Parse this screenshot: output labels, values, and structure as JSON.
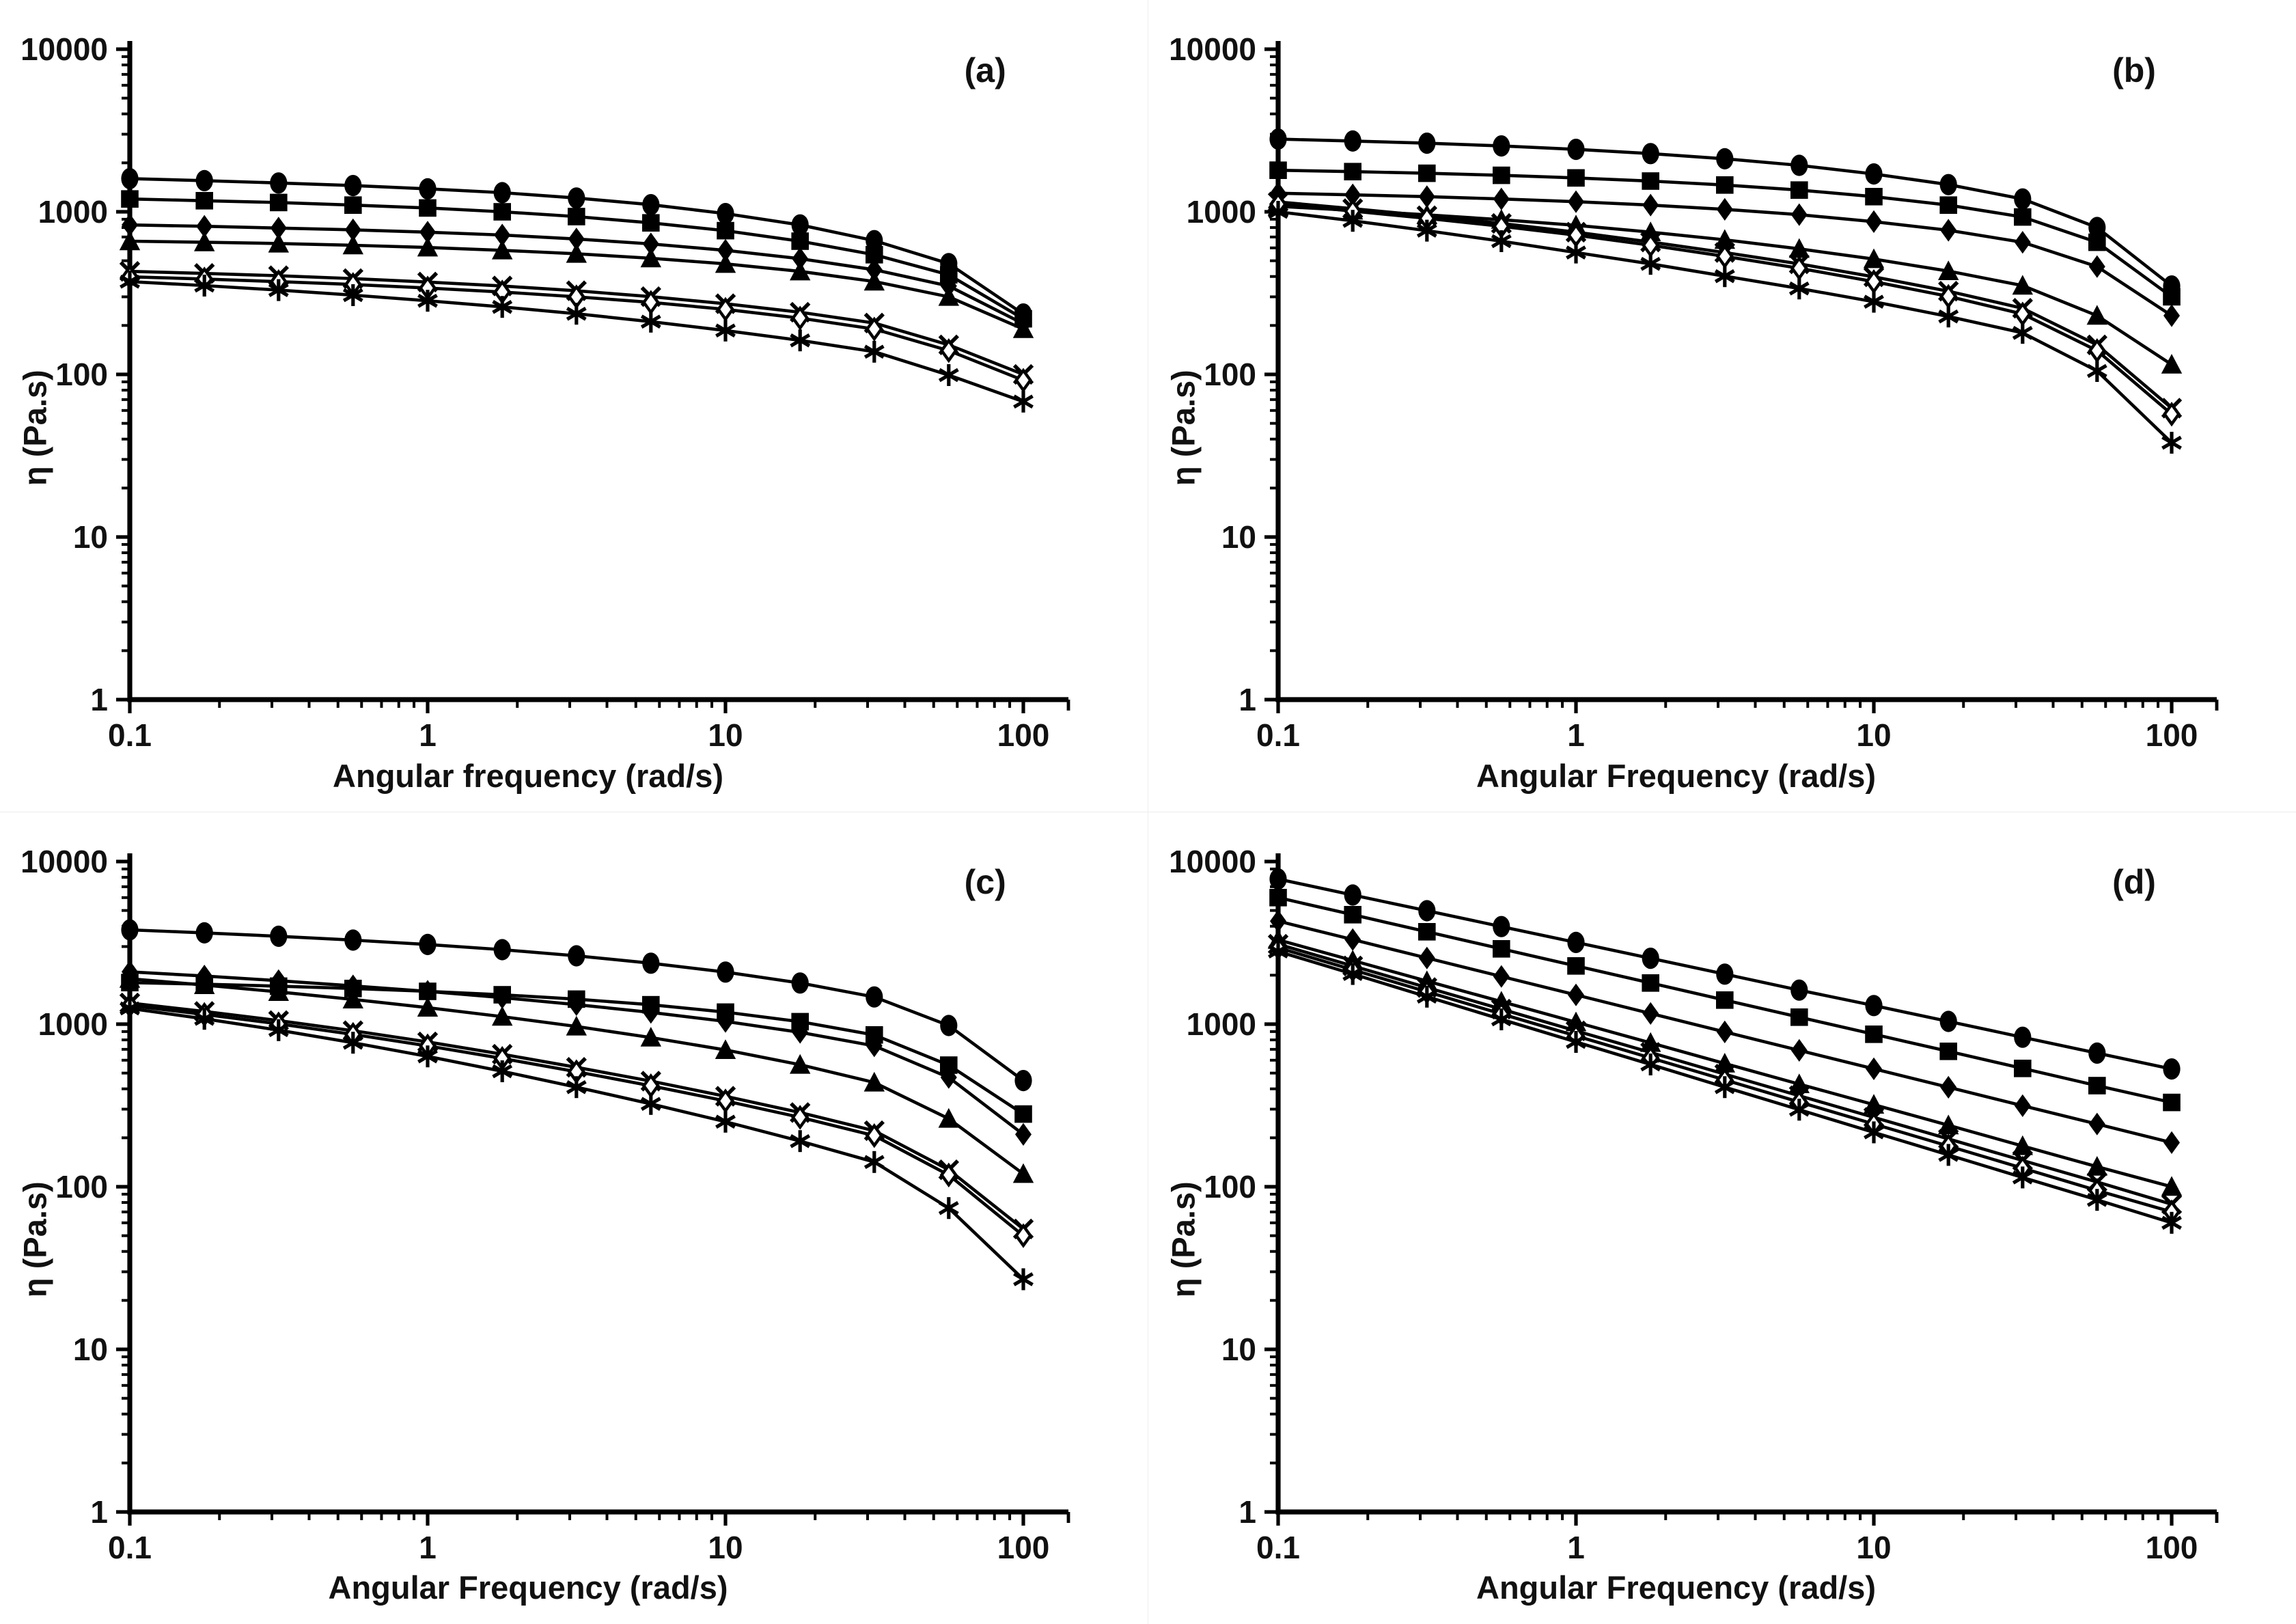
{
  "figure": {
    "background": "#ffffff",
    "axis_color": "#000000",
    "series_color": "#000000",
    "ylabel": "η (Pa.s)"
  },
  "chart_data": [
    {
      "type": "line",
      "tag": "(a)",
      "xlabel": "Angular frequency (rad/s)",
      "ylabel": "η (Pa.s)",
      "x_scale": "log",
      "y_scale": "log",
      "xlim": [
        0.1,
        100
      ],
      "ylim": [
        1,
        10000
      ],
      "x_tick_labels": [
        "0.1",
        "1",
        "10",
        "100"
      ],
      "y_tick_labels": [
        "1",
        "10",
        "100",
        "1000",
        "10000"
      ],
      "x": [
        0.1,
        0.178,
        0.316,
        0.562,
        1,
        1.78,
        3.16,
        5.62,
        10,
        17.8,
        31.6,
        56.2,
        100
      ],
      "series": [
        {
          "marker": "filled-circle",
          "values": [
            1600,
            1555,
            1505,
            1450,
            1385,
            1310,
            1215,
            1105,
            975,
            830,
            665,
            480,
            235
          ]
        },
        {
          "marker": "filled-square",
          "values": [
            1200,
            1170,
            1140,
            1100,
            1055,
            1000,
            935,
            855,
            765,
            660,
            545,
            410,
            220
          ]
        },
        {
          "marker": "filled-diamond",
          "values": [
            830,
            815,
            795,
            775,
            750,
            720,
            680,
            635,
            580,
            515,
            440,
            350,
            205
          ]
        },
        {
          "marker": "filled-triangle",
          "values": [
            660,
            650,
            638,
            622,
            603,
            580,
            552,
            518,
            478,
            430,
            373,
            300,
            190
          ]
        },
        {
          "marker": "x-mark",
          "values": [
            430,
            418,
            404,
            388,
            370,
            350,
            327,
            301,
            272,
            241,
            207,
            152,
            100
          ]
        },
        {
          "marker": "open-diamond",
          "values": [
            398,
            386,
            372,
            357,
            340,
            321,
            300,
            277,
            251,
            222,
            190,
            140,
            92
          ]
        },
        {
          "marker": "asterisk",
          "values": [
            372,
            352,
            330,
            307,
            284,
            260,
            236,
            211,
            186,
            162,
            138,
            99,
            68
          ]
        }
      ]
    },
    {
      "type": "line",
      "tag": "(b)",
      "xlabel": "Angular Frequency (rad/s)",
      "ylabel": "η (Pa.s)",
      "x_scale": "log",
      "y_scale": "log",
      "xlim": [
        0.1,
        100
      ],
      "ylim": [
        1,
        10000
      ],
      "x_tick_labels": [
        "0.1",
        "1",
        "10",
        "100"
      ],
      "y_tick_labels": [
        "1",
        "10",
        "100",
        "1000",
        "10000"
      ],
      "x": [
        0.1,
        0.178,
        0.316,
        0.562,
        1,
        1.78,
        3.16,
        5.62,
        10,
        17.8,
        31.6,
        56.2,
        100
      ],
      "series": [
        {
          "marker": "filled-circle",
          "values": [
            2800,
            2725,
            2640,
            2540,
            2420,
            2280,
            2120,
            1930,
            1710,
            1470,
            1200,
            800,
            350
          ]
        },
        {
          "marker": "filled-square",
          "values": [
            1800,
            1765,
            1725,
            1675,
            1615,
            1545,
            1460,
            1360,
            1240,
            1100,
            930,
            650,
            300
          ]
        },
        {
          "marker": "filled-diamond",
          "values": [
            1300,
            1270,
            1240,
            1200,
            1155,
            1100,
            1035,
            960,
            870,
            770,
            650,
            460,
            230
          ]
        },
        {
          "marker": "filled-triangle",
          "values": [
            1080,
            1020,
            958,
            893,
            825,
            750,
            672,
            592,
            512,
            432,
            352,
            230,
            115
          ]
        },
        {
          "marker": "x-mark",
          "values": [
            1150,
            1045,
            945,
            848,
            750,
            652,
            562,
            478,
            398,
            325,
            255,
            152,
            62
          ]
        },
        {
          "marker": "open-diamond",
          "values": [
            1115,
            1010,
            912,
            815,
            718,
            622,
            532,
            450,
            372,
            302,
            235,
            140,
            57
          ]
        },
        {
          "marker": "asterisk",
          "values": [
            1000,
            880,
            765,
            660,
            562,
            478,
            402,
            338,
            280,
            227,
            180,
            105,
            38
          ]
        }
      ]
    },
    {
      "type": "line",
      "tag": "(c)",
      "xlabel": "Angular Frequency (rad/s)",
      "ylabel": "η (Pa.s)",
      "x_scale": "log",
      "y_scale": "log",
      "xlim": [
        0.1,
        100
      ],
      "ylim": [
        1,
        10000
      ],
      "x_tick_labels": [
        "0.1",
        "1",
        "10",
        "100"
      ],
      "y_tick_labels": [
        "1",
        "10",
        "100",
        "1000",
        "10000"
      ],
      "x": [
        0.1,
        0.178,
        0.316,
        0.562,
        1,
        1.78,
        3.16,
        5.62,
        10,
        17.8,
        31.6,
        56.2,
        100
      ],
      "series": [
        {
          "marker": "filled-circle",
          "values": [
            3800,
            3640,
            3470,
            3290,
            3090,
            2870,
            2630,
            2370,
            2090,
            1790,
            1470,
            980,
            450
          ]
        },
        {
          "marker": "filled-square",
          "values": [
            1800,
            1760,
            1712,
            1657,
            1592,
            1515,
            1425,
            1315,
            1185,
            1035,
            858,
            560,
            280
          ]
        },
        {
          "marker": "filled-diamond",
          "values": [
            2100,
            1975,
            1850,
            1720,
            1590,
            1455,
            1320,
            1182,
            1040,
            890,
            735,
            470,
            210
          ]
        },
        {
          "marker": "filled-triangle",
          "values": [
            1900,
            1738,
            1578,
            1420,
            1263,
            1112,
            967,
            828,
            694,
            563,
            438,
            262,
            120
          ]
        },
        {
          "marker": "x-mark",
          "values": [
            1350,
            1198,
            1052,
            912,
            778,
            653,
            543,
            446,
            360,
            286,
            221,
            127,
            55
          ]
        },
        {
          "marker": "open-diamond",
          "values": [
            1300,
            1148,
            1003,
            865,
            735,
            615,
            510,
            418,
            337,
            267,
            206,
            118,
            50
          ]
        },
        {
          "marker": "asterisk",
          "values": [
            1250,
            1078,
            918,
            768,
            633,
            513,
            410,
            323,
            251,
            191,
            142,
            74,
            27
          ]
        }
      ]
    },
    {
      "type": "line",
      "tag": "(d)",
      "xlabel": "Angular Frequency (rad/s)",
      "ylabel": "η (Pa.s)",
      "x_scale": "log",
      "y_scale": "log",
      "xlim": [
        0.1,
        100
      ],
      "ylim": [
        1,
        10000
      ],
      "x_tick_labels": [
        "0.1",
        "1",
        "10",
        "100"
      ],
      "y_tick_labels": [
        "1",
        "10",
        "100",
        "1000",
        "10000"
      ],
      "x": [
        0.1,
        0.178,
        0.316,
        0.562,
        1,
        1.78,
        3.16,
        5.62,
        10,
        17.8,
        31.6,
        56.2,
        100
      ],
      "series": [
        {
          "marker": "filled-circle",
          "values": [
            7800,
            6230,
            4980,
            3980,
            3180,
            2540,
            2030,
            1620,
            1300,
            1040,
            830,
            663,
            530
          ]
        },
        {
          "marker": "filled-square",
          "values": [
            6000,
            4710,
            3700,
            2905,
            2280,
            1790,
            1405,
            1103,
            866,
            680,
            534,
            419,
            330
          ]
        },
        {
          "marker": "filled-diamond",
          "values": [
            4300,
            3310,
            2550,
            1963,
            1512,
            1164,
            896,
            690,
            531,
            409,
            315,
            243,
            187
          ]
        },
        {
          "marker": "filled-triangle",
          "values": [
            3300,
            2465,
            1841,
            1375,
            1027,
            767,
            573,
            428,
            320,
            239,
            178,
            133,
            100
          ]
        },
        {
          "marker": "x-mark",
          "values": [
            3100,
            2282,
            1680,
            1236,
            910,
            670,
            493,
            363,
            267,
            197,
            145,
            107,
            78
          ]
        },
        {
          "marker": "open-diamond",
          "values": [
            2950,
            2160,
            1581,
            1157,
            847,
            620,
            454,
            332,
            243,
            178,
            130,
            95,
            70
          ]
        },
        {
          "marker": "asterisk",
          "values": [
            2800,
            2033,
            1476,
            1071,
            778,
            565,
            410,
            298,
            216,
            157,
            114,
            83,
            60
          ]
        }
      ]
    }
  ]
}
